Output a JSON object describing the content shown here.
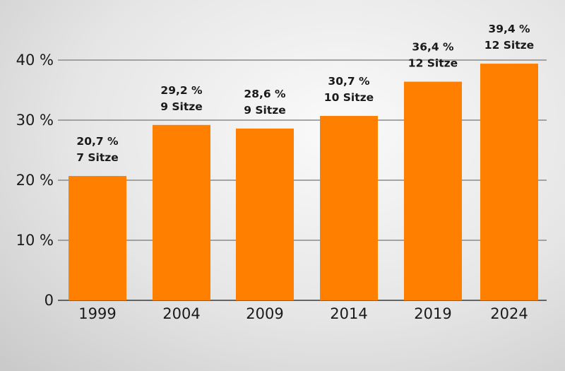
{
  "chart_data": {
    "type": "bar",
    "categories": [
      "1999",
      "2004",
      "2009",
      "2014",
      "2019",
      "2024"
    ],
    "values": [
      20.7,
      29.2,
      28.6,
      30.7,
      36.4,
      39.4
    ],
    "data_labels": [
      [
        "20,7 %",
        "7 Sitze"
      ],
      [
        "29,2 %",
        "9 Sitze"
      ],
      [
        "28,6 %",
        "9 Sitze"
      ],
      [
        "30,7 %",
        "10 Sitze"
      ],
      [
        "36,4 %",
        "12 Sitze"
      ],
      [
        "39,4 %",
        "12 Sitze"
      ]
    ],
    "y_ticks": [
      0,
      10,
      20,
      30,
      40
    ],
    "y_tick_labels": [
      "0",
      "10 %",
      "20 %",
      "30 %",
      "40 %"
    ],
    "ylim": [
      0,
      40
    ],
    "grid": true,
    "bar_color": "#ff8000",
    "grid_color": "#8a8a8a",
    "title": "",
    "xlabel": "",
    "ylabel": ""
  }
}
